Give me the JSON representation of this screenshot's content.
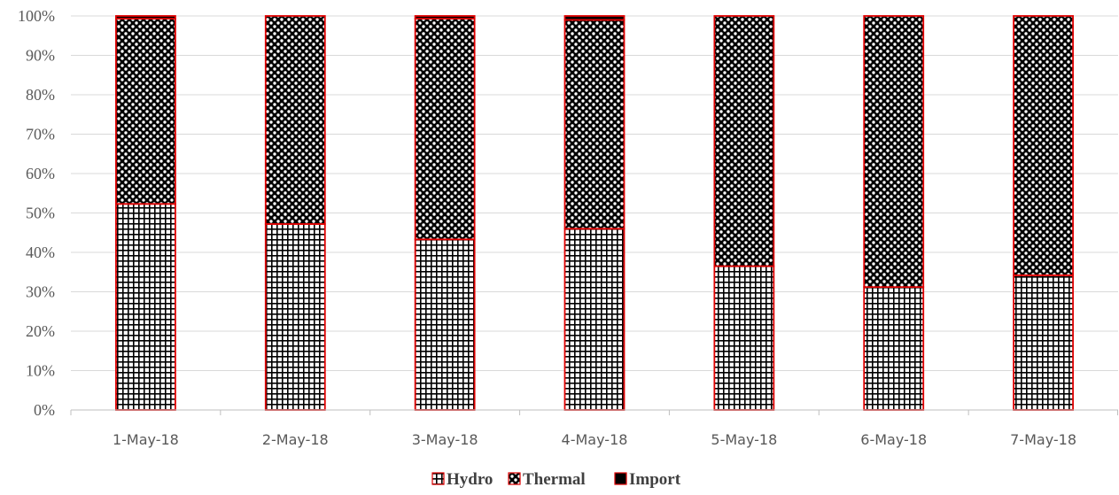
{
  "chart_data": {
    "type": "bar",
    "stacked": true,
    "percent_stacked": true,
    "categories": [
      "1-May-18",
      "2-May-18",
      "3-May-18",
      "4-May-18",
      "5-May-18",
      "6-May-18",
      "7-May-18"
    ],
    "series": [
      {
        "name": "Hydro",
        "values": [
          52.3,
          47.2,
          43.3,
          46.0,
          36.5,
          31.2,
          34.2
        ],
        "pattern": "grid-cross",
        "border_color": "#e00000"
      },
      {
        "name": "Thermal",
        "values": [
          47.0,
          52.8,
          56.0,
          53.0,
          63.5,
          68.8,
          65.8
        ],
        "pattern": "checker-dots",
        "border_color": "#e00000"
      },
      {
        "name": "Import",
        "values": [
          0.7,
          0.0,
          0.7,
          1.0,
          0.0,
          0.0,
          0.0
        ],
        "pattern": "solid-black",
        "border_color": "#e00000"
      }
    ],
    "y_ticks": [
      "0%",
      "10%",
      "20%",
      "30%",
      "40%",
      "50%",
      "60%",
      "70%",
      "80%",
      "90%",
      "100%"
    ],
    "ylim": [
      0,
      100
    ],
    "grid": true,
    "legend_position": "bottom-center",
    "colors": {
      "bar_border": "#e00000",
      "grid": "#d9d9d9",
      "axis": "#bfbfbf",
      "fill_dark": "#000000",
      "fill_light": "#ffffff"
    }
  }
}
